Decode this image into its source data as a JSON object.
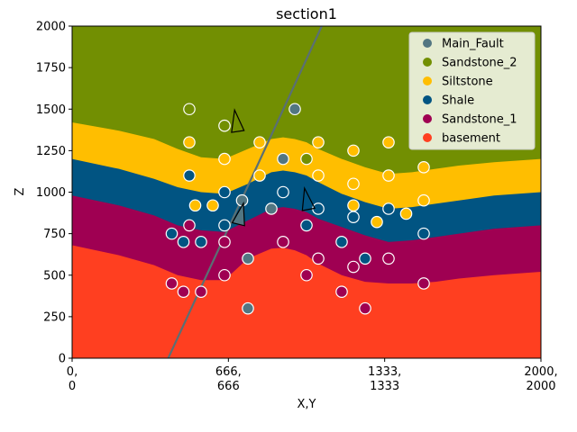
{
  "chart_data": {
    "type": "scatter",
    "title": "section1",
    "xlabel": "X,Y",
    "ylabel": "Z",
    "xlim": [
      0,
      2000
    ],
    "ylim": [
      0,
      2000
    ],
    "xticks": [
      {
        "value": 0,
        "line1": "0,",
        "line2": "0"
      },
      {
        "value": 666.67,
        "line1": "666,",
        "line2": "666"
      },
      {
        "value": 1333.33,
        "line1": "1333,",
        "line2": "1333"
      },
      {
        "value": 2000,
        "line1": "2000,",
        "line2": "2000"
      }
    ],
    "yticks": [
      0,
      250,
      500,
      750,
      1000,
      1250,
      1500,
      1750,
      2000
    ],
    "yticklabels": [
      "0",
      "250",
      "500",
      "750",
      "1000",
      "1250",
      "1500",
      "1750",
      "2000"
    ],
    "grid": false,
    "legend_placement": "top-right",
    "legend": [
      {
        "name": "Main_Fault",
        "color": "#527682"
      },
      {
        "name": "Sandstone_2",
        "color": "#728f02"
      },
      {
        "name": "Siltstone",
        "color": "#ffbe00"
      },
      {
        "name": "Shale",
        "color": "#015482"
      },
      {
        "name": "Sandstone_1",
        "color": "#9f0052"
      },
      {
        "name": "basement",
        "color": "#ff3f20"
      }
    ],
    "layers": [
      {
        "name": "Sandstone_2",
        "color": "#728f02",
        "top": null,
        "x": [
          0,
          200,
          350,
          450,
          550,
          650,
          750,
          850,
          900,
          950,
          1000,
          1050,
          1150,
          1250,
          1350,
          1450,
          1550,
          1650,
          1800,
          2000
        ],
        "bottom": [
          1420,
          1370,
          1320,
          1260,
          1210,
          1200,
          1260,
          1320,
          1330,
          1320,
          1300,
          1260,
          1200,
          1150,
          1110,
          1120,
          1140,
          1160,
          1180,
          1200
        ]
      },
      {
        "name": "Siltstone",
        "color": "#ffbe00",
        "x": [
          0,
          200,
          350,
          450,
          550,
          650,
          750,
          850,
          900,
          950,
          1000,
          1050,
          1150,
          1250,
          1350,
          1450,
          1550,
          1650,
          1800,
          2000
        ],
        "bottom": [
          1200,
          1140,
          1080,
          1030,
          1000,
          990,
          1050,
          1120,
          1130,
          1120,
          1100,
          1060,
          990,
          940,
          900,
          910,
          930,
          950,
          980,
          1000
        ]
      },
      {
        "name": "Shale",
        "color": "#015482",
        "x": [
          0,
          200,
          350,
          450,
          550,
          650,
          750,
          850,
          900,
          950,
          1000,
          1050,
          1150,
          1250,
          1350,
          1450,
          1550,
          1650,
          1800,
          2000
        ],
        "bottom": [
          980,
          920,
          860,
          800,
          770,
          760,
          830,
          900,
          910,
          900,
          880,
          840,
          790,
          740,
          700,
          710,
          730,
          750,
          780,
          800
        ]
      },
      {
        "name": "Sandstone_1",
        "color": "#9f0052",
        "x": [
          0,
          200,
          350,
          450,
          550,
          650,
          750,
          850,
          900,
          950,
          1000,
          1050,
          1150,
          1250,
          1350,
          1450,
          1550,
          1650,
          1800,
          2000
        ],
        "bottom": [
          680,
          620,
          560,
          500,
          470,
          470,
          600,
          660,
          665,
          650,
          620,
          570,
          500,
          460,
          450,
          450,
          460,
          480,
          500,
          520
        ]
      },
      {
        "name": "basement",
        "color": "#ff3f20",
        "bottom": null,
        "x": [
          0,
          2000
        ],
        "bottom_const": 0
      }
    ],
    "fault_line": {
      "name": "Main_Fault",
      "color": "#5a6f74",
      "x": [
        410,
        1065
      ],
      "y": [
        0,
        2000
      ]
    },
    "series": [
      {
        "name": "Main_Fault",
        "color": "#527682",
        "points": [
          [
            950,
            1500
          ],
          [
            900,
            1200
          ],
          [
            725,
            950
          ],
          [
            850,
            900
          ],
          [
            750,
            600
          ],
          [
            750,
            300
          ]
        ]
      },
      {
        "name": "Sandstone_2",
        "color": "#728f02",
        "points": [
          [
            500,
            1500
          ],
          [
            650,
            1400
          ],
          [
            1000,
            1200
          ]
        ]
      },
      {
        "name": "Siltstone",
        "color": "#ffbe00",
        "points": [
          [
            500,
            1300
          ],
          [
            650,
            1200
          ],
          [
            800,
            1300
          ],
          [
            1050,
            1300
          ],
          [
            1200,
            1250
          ],
          [
            1350,
            1300
          ],
          [
            1500,
            1150
          ],
          [
            800,
            1100
          ],
          [
            1050,
            1100
          ],
          [
            1350,
            1100
          ],
          [
            1200,
            1050
          ],
          [
            525,
            920
          ],
          [
            600,
            920
          ],
          [
            1200,
            920
          ],
          [
            1300,
            820
          ],
          [
            1425,
            870
          ],
          [
            1500,
            950
          ]
        ]
      },
      {
        "name": "Shale",
        "color": "#015482",
        "points": [
          [
            500,
            1100
          ],
          [
            650,
            1000
          ],
          [
            900,
            1000
          ],
          [
            1050,
            900
          ],
          [
            1200,
            850
          ],
          [
            1350,
            900
          ],
          [
            1500,
            750
          ],
          [
            425,
            750
          ],
          [
            475,
            700
          ],
          [
            550,
            700
          ],
          [
            650,
            800
          ],
          [
            1000,
            800
          ],
          [
            1150,
            700
          ],
          [
            1250,
            600
          ]
        ]
      },
      {
        "name": "Sandstone_1",
        "color": "#9f0052",
        "points": [
          [
            500,
            800
          ],
          [
            650,
            700
          ],
          [
            900,
            700
          ],
          [
            1050,
            600
          ],
          [
            1200,
            550
          ],
          [
            1350,
            600
          ],
          [
            1000,
            500
          ],
          [
            650,
            500
          ],
          [
            425,
            450
          ],
          [
            475,
            400
          ],
          [
            550,
            400
          ],
          [
            1150,
            400
          ],
          [
            1250,
            300
          ],
          [
            1500,
            450
          ]
        ]
      }
    ],
    "orientations": [
      {
        "x": 700,
        "y": 1430,
        "dx": -12,
        "dy": 80,
        "color": "none"
      },
      {
        "x": 1000,
        "y": 960,
        "dx": -15,
        "dy": 80,
        "color": "none"
      },
      {
        "x": 720,
        "y": 870,
        "dx": 18,
        "dy": 75,
        "color": "#527682"
      }
    ]
  }
}
